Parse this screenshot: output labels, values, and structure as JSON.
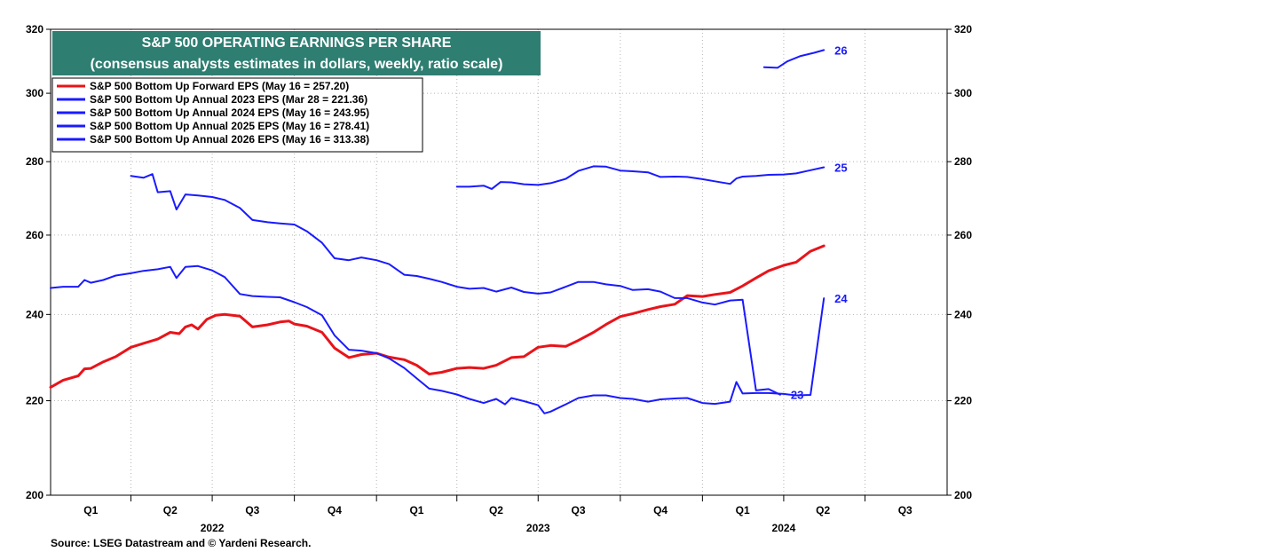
{
  "chart_data": {
    "type": "line",
    "title": "S&P 500 OPERATING EARNINGS PER SHARE",
    "subtitle": "(consensus analysts estimates in dollars, weekly, ratio scale)",
    "source": "Source: LSEG Datastream and © Yardeni Research.",
    "y_scale": "log",
    "ylim": [
      200,
      320
    ],
    "y_ticks": [
      "200",
      "220",
      "240",
      "260",
      "280",
      "300",
      "320"
    ],
    "x_range": [
      "2022-01-01",
      "2024-10-01"
    ],
    "quarters": [
      {
        "label": "Q1",
        "date": "2022-02-15"
      },
      {
        "label": "Q2",
        "date": "2022-05-15"
      },
      {
        "label": "Q3",
        "date": "2022-08-15"
      },
      {
        "label": "Q4",
        "date": "2022-11-15"
      },
      {
        "label": "Q1",
        "date": "2023-02-15"
      },
      {
        "label": "Q2",
        "date": "2023-05-15"
      },
      {
        "label": "Q3",
        "date": "2023-08-15"
      },
      {
        "label": "Q4",
        "date": "2023-11-15"
      },
      {
        "label": "Q1",
        "date": "2024-02-15"
      },
      {
        "label": "Q2",
        "date": "2024-05-15"
      },
      {
        "label": "Q3",
        "date": "2024-08-15"
      }
    ],
    "years": [
      {
        "label": "2022",
        "date": "2022-07-01"
      },
      {
        "label": "2023",
        "date": "2023-07-01"
      },
      {
        "label": "2024",
        "date": "2024-04-01"
      }
    ],
    "grid": true,
    "legend_position": "top-left",
    "series": [
      {
        "name": "S&P 500 Bottom Up Forward EPS (May 16 = 257.20)",
        "color": "#e8141a",
        "end_label": "",
        "points": [
          [
            "2022-01-01",
            223.0
          ],
          [
            "2022-01-15",
            224.6
          ],
          [
            "2022-02-01",
            225.6
          ],
          [
            "2022-02-08",
            227.2
          ],
          [
            "2022-02-15",
            227.3
          ],
          [
            "2022-03-01",
            228.8
          ],
          [
            "2022-03-15",
            230.0
          ],
          [
            "2022-04-01",
            232.2
          ],
          [
            "2022-04-15",
            233.1
          ],
          [
            "2022-05-01",
            234.1
          ],
          [
            "2022-05-15",
            235.7
          ],
          [
            "2022-05-25",
            235.4
          ],
          [
            "2022-06-01",
            237.0
          ],
          [
            "2022-06-08",
            237.5
          ],
          [
            "2022-06-15",
            236.5
          ],
          [
            "2022-06-25",
            238.8
          ],
          [
            "2022-07-05",
            239.8
          ],
          [
            "2022-07-15",
            240.0
          ],
          [
            "2022-08-01",
            239.6
          ],
          [
            "2022-08-15",
            237.0
          ],
          [
            "2022-09-01",
            237.5
          ],
          [
            "2022-09-15",
            238.2
          ],
          [
            "2022-09-25",
            238.4
          ],
          [
            "2022-10-01",
            237.7
          ],
          [
            "2022-10-15",
            237.2
          ],
          [
            "2022-11-01",
            235.7
          ],
          [
            "2022-11-15",
            232.0
          ],
          [
            "2022-12-01",
            229.8
          ],
          [
            "2022-12-15",
            230.5
          ],
          [
            "2023-01-01",
            230.8
          ],
          [
            "2023-01-15",
            229.9
          ],
          [
            "2023-02-01",
            229.3
          ],
          [
            "2023-02-15",
            228.0
          ],
          [
            "2023-03-01",
            226.0
          ],
          [
            "2023-03-15",
            226.4
          ],
          [
            "2023-04-01",
            227.3
          ],
          [
            "2023-04-15",
            227.5
          ],
          [
            "2023-05-01",
            227.3
          ],
          [
            "2023-05-15",
            228.0
          ],
          [
            "2023-06-01",
            229.8
          ],
          [
            "2023-06-15",
            230.0
          ],
          [
            "2023-07-01",
            232.2
          ],
          [
            "2023-07-15",
            232.6
          ],
          [
            "2023-08-01",
            232.4
          ],
          [
            "2023-08-15",
            233.8
          ],
          [
            "2023-09-01",
            235.7
          ],
          [
            "2023-09-15",
            237.6
          ],
          [
            "2023-10-01",
            239.5
          ],
          [
            "2023-10-15",
            240.2
          ],
          [
            "2023-11-01",
            241.2
          ],
          [
            "2023-11-15",
            241.9
          ],
          [
            "2023-12-01",
            242.5
          ],
          [
            "2023-12-15",
            244.6
          ],
          [
            "2024-01-01",
            244.4
          ],
          [
            "2024-01-15",
            244.9
          ],
          [
            "2024-02-01",
            245.4
          ],
          [
            "2024-02-15",
            247.0
          ],
          [
            "2024-03-01",
            249.0
          ],
          [
            "2024-03-15",
            250.8
          ],
          [
            "2024-04-01",
            252.2
          ],
          [
            "2024-04-15",
            253.0
          ],
          [
            "2024-05-01",
            255.8
          ],
          [
            "2024-05-16",
            257.2
          ]
        ]
      },
      {
        "name": "S&P 500 Bottom Up Annual 2023 EPS (Mar 28 = 221.36)",
        "color": "#1a1aff",
        "end_label": "23",
        "points": [
          [
            "2022-04-01",
            276.0
          ],
          [
            "2022-04-15",
            275.5
          ],
          [
            "2022-04-25",
            276.5
          ],
          [
            "2022-05-01",
            271.5
          ],
          [
            "2022-05-15",
            271.8
          ],
          [
            "2022-05-22",
            266.8
          ],
          [
            "2022-06-01",
            270.9
          ],
          [
            "2022-06-15",
            270.6
          ],
          [
            "2022-07-01",
            270.2
          ],
          [
            "2022-07-15",
            269.4
          ],
          [
            "2022-08-01",
            267.2
          ],
          [
            "2022-08-15",
            264.0
          ],
          [
            "2022-09-01",
            263.4
          ],
          [
            "2022-09-15",
            263.1
          ],
          [
            "2022-10-01",
            262.8
          ],
          [
            "2022-10-15",
            261.0
          ],
          [
            "2022-11-01",
            258.0
          ],
          [
            "2022-11-15",
            254.0
          ],
          [
            "2022-12-01",
            253.5
          ],
          [
            "2022-12-15",
            254.2
          ],
          [
            "2023-01-01",
            253.5
          ],
          [
            "2023-01-15",
            252.5
          ],
          [
            "2023-02-01",
            249.8
          ],
          [
            "2023-02-15",
            249.5
          ],
          [
            "2023-03-01",
            248.8
          ],
          [
            "2023-03-15",
            248.0
          ],
          [
            "2023-04-01",
            246.8
          ],
          [
            "2023-04-15",
            246.3
          ],
          [
            "2023-05-01",
            246.5
          ],
          [
            "2023-05-15",
            245.6
          ],
          [
            "2023-06-01",
            246.6
          ],
          [
            "2023-06-15",
            245.5
          ],
          [
            "2023-07-01",
            245.1
          ],
          [
            "2023-07-15",
            245.4
          ],
          [
            "2023-08-01",
            246.8
          ],
          [
            "2023-08-15",
            248.0
          ],
          [
            "2023-09-01",
            248.0
          ],
          [
            "2023-09-15",
            247.4
          ],
          [
            "2023-10-01",
            247.0
          ],
          [
            "2023-10-15",
            246.0
          ],
          [
            "2023-11-01",
            246.2
          ],
          [
            "2023-11-15",
            245.6
          ],
          [
            "2023-12-01",
            244.0
          ],
          [
            "2023-12-15",
            244.0
          ],
          [
            "2024-01-01",
            242.9
          ],
          [
            "2024-01-15",
            242.4
          ],
          [
            "2024-02-01",
            243.4
          ],
          [
            "2024-02-15",
            243.6
          ],
          [
            "2024-03-01",
            222.3
          ],
          [
            "2024-03-15",
            222.6
          ],
          [
            "2024-03-28",
            221.36
          ]
        ]
      },
      {
        "name": "S&P 500 Bottom Up Annual 2024 EPS (May 16 = 243.95)",
        "color": "#1a1aff",
        "end_label": "24",
        "points": [
          [
            "2022-01-01",
            246.5
          ],
          [
            "2022-01-15",
            246.8
          ],
          [
            "2022-02-01",
            246.8
          ],
          [
            "2022-02-08",
            248.5
          ],
          [
            "2022-02-15",
            247.8
          ],
          [
            "2022-03-01",
            248.5
          ],
          [
            "2022-03-15",
            249.6
          ],
          [
            "2022-04-01",
            250.2
          ],
          [
            "2022-04-15",
            250.8
          ],
          [
            "2022-05-01",
            251.2
          ],
          [
            "2022-05-15",
            251.8
          ],
          [
            "2022-05-22",
            249.0
          ],
          [
            "2022-06-01",
            251.8
          ],
          [
            "2022-06-15",
            252.0
          ],
          [
            "2022-07-01",
            250.9
          ],
          [
            "2022-07-15",
            249.2
          ],
          [
            "2022-08-01",
            245.0
          ],
          [
            "2022-08-15",
            244.5
          ],
          [
            "2022-09-01",
            244.3
          ],
          [
            "2022-09-15",
            244.2
          ],
          [
            "2022-10-01",
            243.0
          ],
          [
            "2022-10-15",
            241.8
          ],
          [
            "2022-11-01",
            239.8
          ],
          [
            "2022-11-15",
            235.0
          ],
          [
            "2022-12-01",
            231.6
          ],
          [
            "2022-12-15",
            231.4
          ],
          [
            "2023-01-01",
            230.8
          ],
          [
            "2023-01-15",
            229.6
          ],
          [
            "2023-02-01",
            227.4
          ],
          [
            "2023-02-15",
            225.0
          ],
          [
            "2023-03-01",
            222.7
          ],
          [
            "2023-03-15",
            222.2
          ],
          [
            "2023-04-01",
            221.4
          ],
          [
            "2023-04-15",
            220.4
          ],
          [
            "2023-05-01",
            219.5
          ],
          [
            "2023-05-15",
            220.4
          ],
          [
            "2023-05-25",
            219.2
          ],
          [
            "2023-06-01",
            220.6
          ],
          [
            "2023-06-15",
            219.9
          ],
          [
            "2023-07-01",
            219.0
          ],
          [
            "2023-07-08",
            217.2
          ],
          [
            "2023-07-15",
            217.6
          ],
          [
            "2023-08-01",
            219.2
          ],
          [
            "2023-08-15",
            220.6
          ],
          [
            "2023-09-01",
            221.2
          ],
          [
            "2023-09-15",
            221.2
          ],
          [
            "2023-10-01",
            220.6
          ],
          [
            "2023-10-15",
            220.4
          ],
          [
            "2023-11-01",
            219.8
          ],
          [
            "2023-11-15",
            220.3
          ],
          [
            "2023-12-01",
            220.5
          ],
          [
            "2023-12-15",
            220.6
          ],
          [
            "2024-01-01",
            219.5
          ],
          [
            "2024-01-15",
            219.3
          ],
          [
            "2024-02-01",
            219.8
          ],
          [
            "2024-02-08",
            224.2
          ],
          [
            "2024-02-15",
            221.6
          ],
          [
            "2024-03-01",
            221.7
          ],
          [
            "2024-03-15",
            221.7
          ],
          [
            "2024-04-01",
            221.5
          ],
          [
            "2024-04-15",
            221.2
          ],
          [
            "2024-05-01",
            221.3
          ],
          [
            "2024-05-16",
            243.95
          ]
        ]
      },
      {
        "name": "S&P 500 Bottom Up Annual 2025 EPS (May 16 = 278.41)",
        "color": "#1a1aff",
        "end_label": "25",
        "points": [
          [
            "2023-04-01",
            273.0
          ],
          [
            "2023-04-15",
            273.0
          ],
          [
            "2023-05-01",
            273.3
          ],
          [
            "2023-05-10",
            272.4
          ],
          [
            "2023-05-20",
            274.3
          ],
          [
            "2023-06-01",
            274.2
          ],
          [
            "2023-06-15",
            273.7
          ],
          [
            "2023-07-01",
            273.5
          ],
          [
            "2023-07-15",
            274.0
          ],
          [
            "2023-08-01",
            275.2
          ],
          [
            "2023-08-15",
            277.4
          ],
          [
            "2023-09-01",
            278.7
          ],
          [
            "2023-09-15",
            278.6
          ],
          [
            "2023-10-01",
            277.5
          ],
          [
            "2023-10-15",
            277.3
          ],
          [
            "2023-11-01",
            277.0
          ],
          [
            "2023-11-15",
            275.7
          ],
          [
            "2023-12-01",
            275.8
          ],
          [
            "2023-12-15",
            275.7
          ],
          [
            "2024-01-01",
            275.1
          ],
          [
            "2024-01-15",
            274.5
          ],
          [
            "2024-02-01",
            273.8
          ],
          [
            "2024-02-08",
            275.3
          ],
          [
            "2024-02-15",
            275.8
          ],
          [
            "2024-03-01",
            276.0
          ],
          [
            "2024-03-15",
            276.3
          ],
          [
            "2024-04-01",
            276.4
          ],
          [
            "2024-04-15",
            276.7
          ],
          [
            "2024-05-01",
            277.6
          ],
          [
            "2024-05-16",
            278.41
          ]
        ]
      },
      {
        "name": "S&P 500 Bottom Up Annual 2026 EPS (May 16 = 313.38)",
        "color": "#1a1aff",
        "end_label": "26",
        "points": [
          [
            "2024-03-10",
            308.0
          ],
          [
            "2024-03-25",
            307.8
          ],
          [
            "2024-04-05",
            309.8
          ],
          [
            "2024-04-20",
            311.5
          ],
          [
            "2024-05-05",
            312.5
          ],
          [
            "2024-05-16",
            313.38
          ]
        ]
      }
    ]
  }
}
